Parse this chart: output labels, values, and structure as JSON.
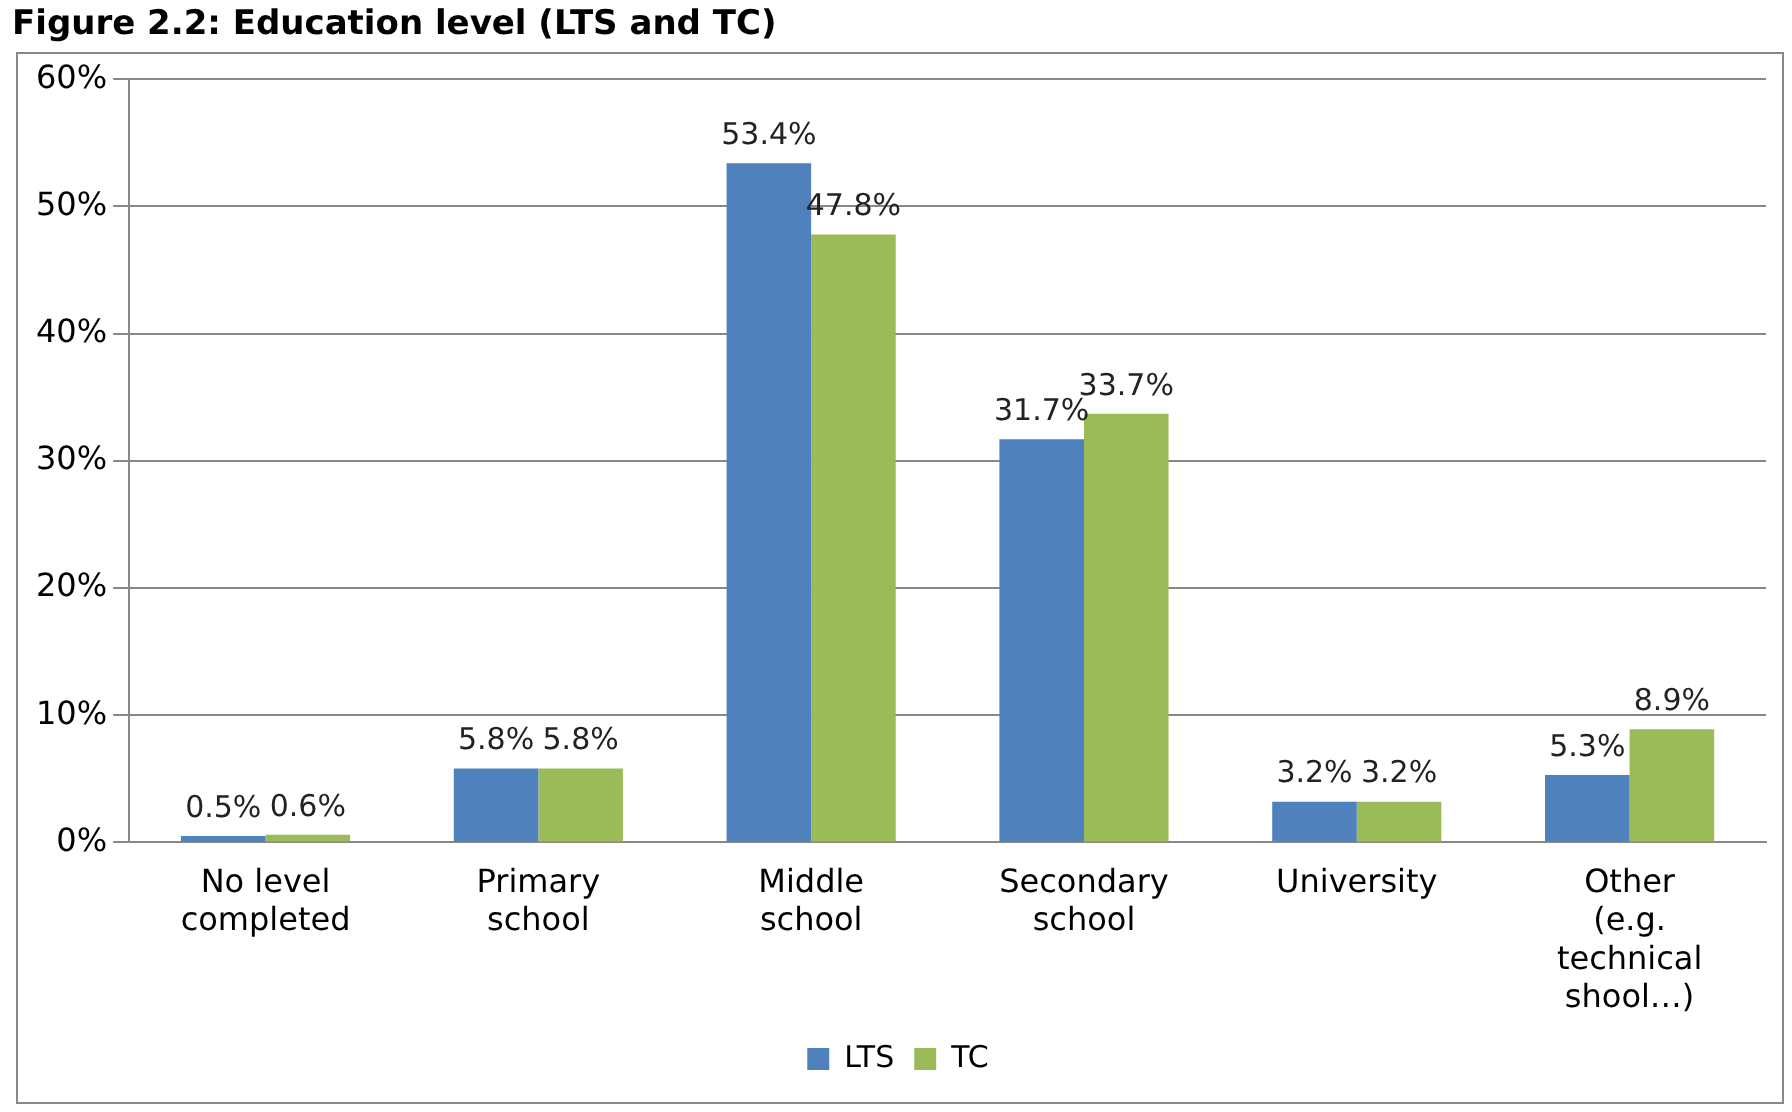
{
  "chart_data": {
    "type": "bar",
    "title": "Figure 2.2: Education level (LTS and TC)",
    "categories": [
      "No level completed",
      "Primary school",
      "Middle school",
      "Secondary school",
      "University",
      "Other (e.g. technical shool…)"
    ],
    "series": [
      {
        "name": "LTS",
        "color": "#4f81bd",
        "values": [
          0.5,
          5.8,
          53.4,
          31.7,
          3.2,
          5.3
        ],
        "value_labels": [
          "0.5%",
          "5.8%",
          "53.4%",
          "31.7%",
          "3.2%",
          "5.3%"
        ]
      },
      {
        "name": "TC",
        "color": "#9bbb59",
        "values": [
          0.6,
          5.8,
          47.8,
          33.7,
          3.2,
          8.9
        ],
        "value_labels": [
          "0.6%",
          "5.8%",
          "47.8%",
          "33.7%",
          "3.2%",
          "8.9%"
        ]
      }
    ],
    "ylim": [
      0,
      60
    ],
    "yticks": [
      {
        "value": 0,
        "label": "0%"
      },
      {
        "value": 10,
        "label": "10%"
      },
      {
        "value": 20,
        "label": "20%"
      },
      {
        "value": 30,
        "label": "30%"
      },
      {
        "value": 40,
        "label": "40%"
      },
      {
        "value": 50,
        "label": "50%"
      },
      {
        "value": 60,
        "label": "60%"
      }
    ],
    "grid": "y",
    "legend": "bottom"
  }
}
